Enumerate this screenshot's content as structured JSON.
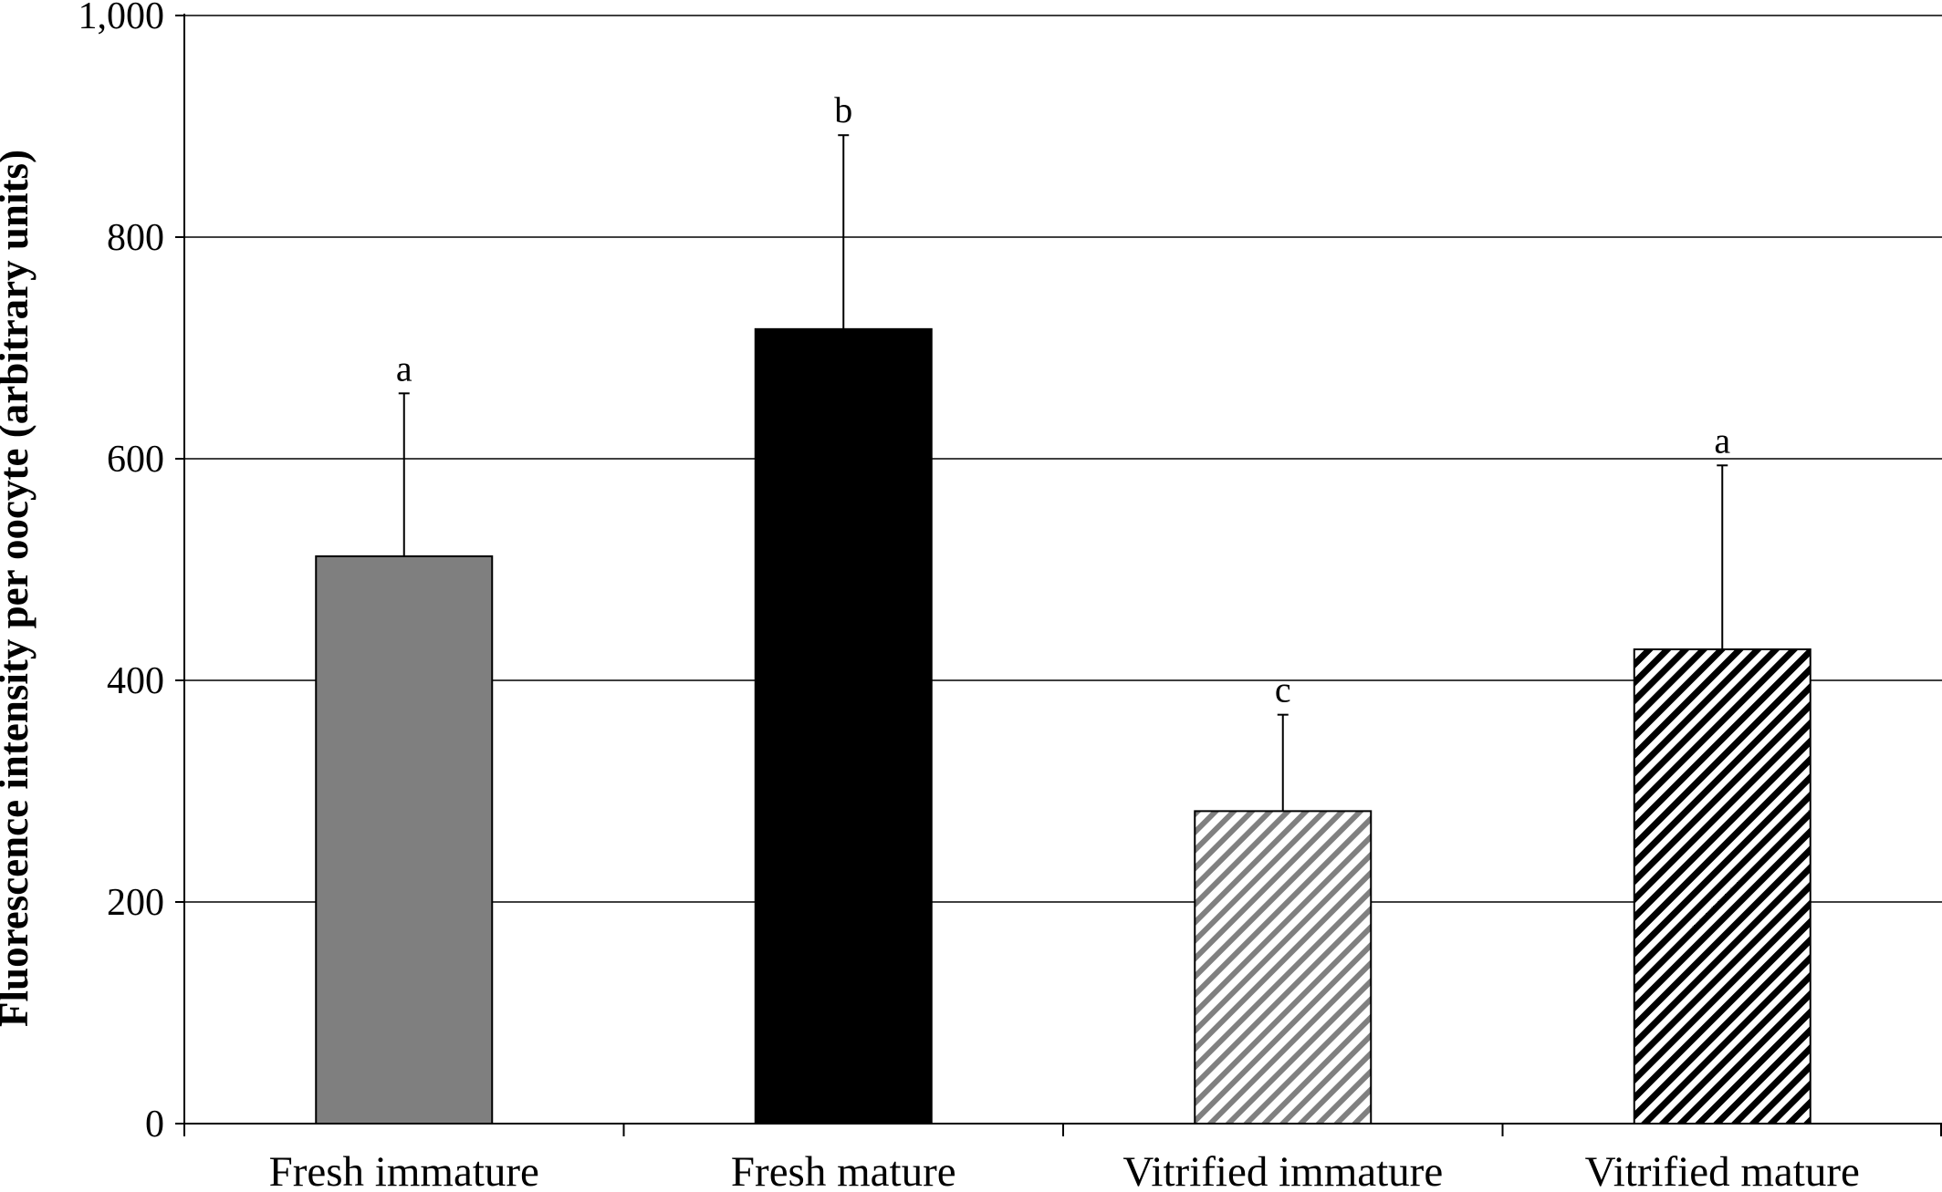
{
  "chart_data": {
    "type": "bar",
    "ylabel": "Fluorescence intensity per oocyte (arbitrary units)",
    "xlabel": "",
    "ylim": [
      0,
      1000
    ],
    "yticks": [
      0,
      200,
      400,
      600,
      800,
      1000
    ],
    "ytick_labels": [
      "0",
      "200",
      "400",
      "600",
      "800",
      "1,000"
    ],
    "grid": true,
    "categories": [
      "Fresh immature",
      "Fresh mature",
      "Vitrified immature",
      "Vitrified mature"
    ],
    "values": [
      512,
      717,
      282,
      428
    ],
    "errors": [
      147,
      175,
      87,
      166
    ],
    "significance": [
      "a",
      "b",
      "c",
      "a"
    ],
    "fills": [
      "solid-gray",
      "solid-black",
      "hatch-gray",
      "hatch-black"
    ],
    "colors": {
      "gray": "#7f7f7f",
      "black": "#000000",
      "hatch_gray": "#808080",
      "hatch_black": "#000000"
    }
  }
}
